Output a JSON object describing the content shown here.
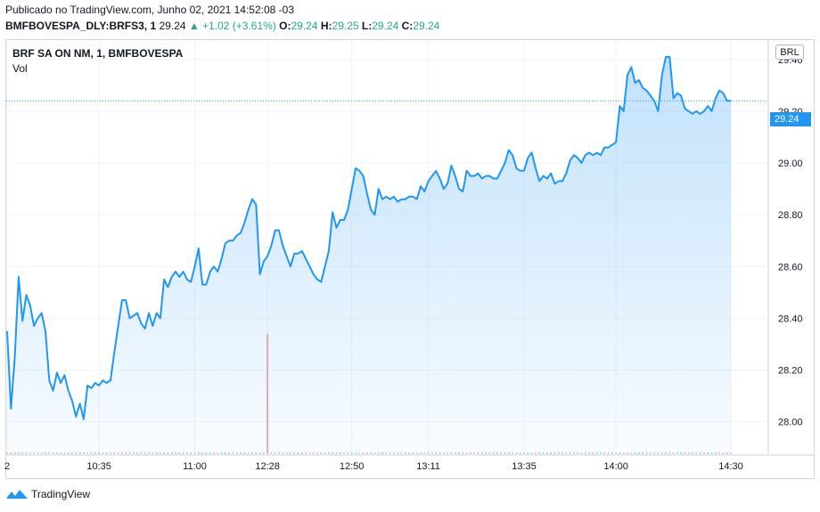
{
  "header": {
    "published": "Publicado no TradingView.com, Junho 02, 2021 14:52:08 -03",
    "symbol_interval": "BMFBOVESPA_DLY:BRFS3, 1",
    "last": "29.24",
    "change": "▲ +1.02 (+3.61%)",
    "o_label": "O:",
    "o_value": "29.24",
    "h_label": "H:",
    "h_value": "29.25",
    "l_label": "L:",
    "l_value": "29.24",
    "c_label": "C:",
    "c_value": "29.24"
  },
  "legend": {
    "title": "BRF SA ON NM, 1, BMFBOVESPA",
    "volume": "Vol"
  },
  "currency": "BRL",
  "last_price_badge": "29.24",
  "footer": {
    "brand": "TradingView"
  },
  "colors": {
    "line": "#2196f3",
    "volume_spike": "#ef9a9a",
    "up": "#26a69a",
    "badge": "#2196f3"
  },
  "chart_data": {
    "type": "area",
    "y_ticks": [
      "28.00",
      "28.20",
      "28.40",
      "28.60",
      "28.80",
      "29.00",
      "29.20",
      "29.40"
    ],
    "ylim": [
      27.875,
      29.475
    ],
    "x_ticks": [
      {
        "label": "2",
        "index": 0
      },
      {
        "label": "10:35",
        "index": 24
      },
      {
        "label": "11:00",
        "index": 49
      },
      {
        "label": "12:28",
        "index": 68
      },
      {
        "label": "12:50",
        "index": 90
      },
      {
        "label": "13:11",
        "index": 110
      },
      {
        "label": "13:35",
        "index": 135
      },
      {
        "label": "14:00",
        "index": 159
      },
      {
        "label": "14:30",
        "index": 189
      }
    ],
    "last_value": 29.24,
    "grid": true,
    "values": [
      28.35,
      28.05,
      28.25,
      28.56,
      28.39,
      28.49,
      28.45,
      28.37,
      28.4,
      28.42,
      28.35,
      28.16,
      28.12,
      28.19,
      28.15,
      28.18,
      28.12,
      28.08,
      28.02,
      28.07,
      28.01,
      28.14,
      28.13,
      28.15,
      28.14,
      28.16,
      28.15,
      28.16,
      28.27,
      28.37,
      28.47,
      28.47,
      28.4,
      28.41,
      28.42,
      28.38,
      28.36,
      28.42,
      28.37,
      28.42,
      28.4,
      28.55,
      28.52,
      28.56,
      28.58,
      28.56,
      28.58,
      28.55,
      28.54,
      28.6,
      28.67,
      28.53,
      28.53,
      28.58,
      28.6,
      28.58,
      28.63,
      28.69,
      28.7,
      28.7,
      28.72,
      28.73,
      28.77,
      28.82,
      28.86,
      28.84,
      28.57,
      28.62,
      28.64,
      28.68,
      28.74,
      28.74,
      28.68,
      28.64,
      28.6,
      28.65,
      28.65,
      28.66,
      28.63,
      28.6,
      28.57,
      28.55,
      28.54,
      28.6,
      28.66,
      28.81,
      28.75,
      28.78,
      28.78,
      28.82,
      28.9,
      28.98,
      28.97,
      28.95,
      28.88,
      28.82,
      28.8,
      28.9,
      28.86,
      28.87,
      28.86,
      28.87,
      28.85,
      28.86,
      28.86,
      28.87,
      28.87,
      28.86,
      28.91,
      28.89,
      28.93,
      28.95,
      28.97,
      28.94,
      28.9,
      28.92,
      28.99,
      28.95,
      28.9,
      28.89,
      28.97,
      28.95,
      28.95,
      28.96,
      28.94,
      28.95,
      28.95,
      28.94,
      28.94,
      28.97,
      29.0,
      29.05,
      29.03,
      28.98,
      28.97,
      28.97,
      29.02,
      29.04,
      28.98,
      28.93,
      28.95,
      28.94,
      28.96,
      28.92,
      28.93,
      28.93,
      28.96,
      29.01,
      29.03,
      29.02,
      29.0,
      29.03,
      29.04,
      29.03,
      29.04,
      29.03,
      29.06,
      29.06,
      29.07,
      29.08,
      29.22,
      29.2,
      29.34,
      29.37,
      29.31,
      29.32,
      29.29,
      29.28,
      29.26,
      29.24,
      29.2,
      29.34,
      29.41,
      29.41,
      29.25,
      29.27,
      29.26,
      29.21,
      29.2,
      29.19,
      29.2,
      29.19,
      29.2,
      29.22,
      29.2,
      29.25,
      29.28,
      29.27,
      29.24,
      29.24
    ]
  },
  "volume_data": {
    "spike_index": 68,
    "spike_fraction": 0.75
  }
}
